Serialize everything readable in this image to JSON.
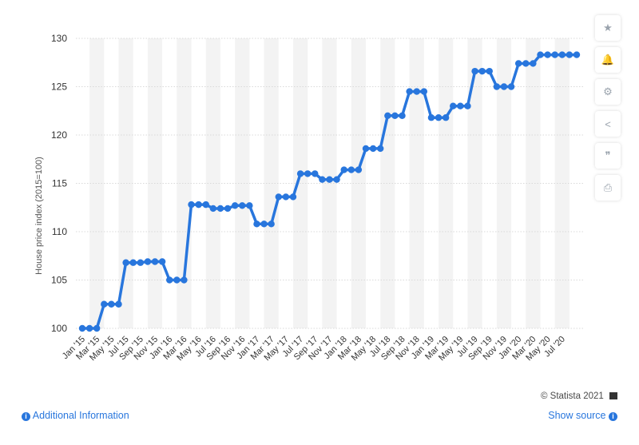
{
  "chart_data": {
    "type": "line",
    "ylabel": "House price index (2015=100)",
    "ylim": [
      100,
      130
    ],
    "yticks": [
      100,
      105,
      110,
      115,
      120,
      125,
      130
    ],
    "x": [
      "Jan '15",
      "Feb '15",
      "Mar '15",
      "Apr '15",
      "May '15",
      "Jun '15",
      "Jul '15",
      "Aug '15",
      "Sep '15",
      "Oct '15",
      "Nov '15",
      "Dec '15",
      "Jan '16",
      "Feb '16",
      "Mar '16",
      "Apr '16",
      "May '16",
      "Jun '16",
      "Jul '16",
      "Aug '16",
      "Sep '16",
      "Oct '16",
      "Nov '16",
      "Dec '16",
      "Jan '17",
      "Feb '17",
      "Mar '17",
      "Apr '17",
      "May '17",
      "Jun '17",
      "Jul '17",
      "Aug '17",
      "Sep '17",
      "Oct '17",
      "Nov '17",
      "Dec '17",
      "Jan '18",
      "Feb '18",
      "Mar '18",
      "Apr '18",
      "May '18",
      "Jun '18",
      "Jul '18",
      "Aug '18",
      "Sep '18",
      "Oct '18",
      "Nov '18",
      "Dec '18",
      "Jan '19",
      "Feb '19",
      "Mar '19",
      "Apr '19",
      "May '19",
      "Jun '19",
      "Jul '19",
      "Aug '19",
      "Sep '19",
      "Oct '19",
      "Nov '19",
      "Dec '19",
      "Jan '20",
      "Feb '20",
      "Mar '20",
      "Apr '20",
      "May '20",
      "Jun '20",
      "Jul '20",
      "Aug '20",
      "Sep '20"
    ],
    "x_tick_labels": [
      "Jan '15",
      "Mar '15",
      "May '15",
      "Jul '15",
      "Sep '15",
      "Nov '15",
      "Jan '16",
      "Mar '16",
      "May '16",
      "Jul '16",
      "Sep '16",
      "Nov '16",
      "Jan '17",
      "Mar '17",
      "May '17",
      "Jul '17",
      "Sep '17",
      "Nov '17",
      "Jan '18",
      "Mar '18",
      "May '18",
      "Jul '18",
      "Sep '18",
      "Nov '18",
      "Jan '19",
      "Mar '19",
      "May '19",
      "Jul '19",
      "Sep '19",
      "Nov '19",
      "Jan '20",
      "Mar '20",
      "May '20",
      "Jul '20"
    ],
    "series": [
      {
        "color": "#2876dd",
        "values": [
          100,
          100,
          100,
          102.5,
          102.5,
          102.5,
          106.8,
          106.8,
          106.8,
          106.9,
          106.9,
          106.9,
          105,
          105,
          105,
          112.8,
          112.8,
          112.8,
          112.4,
          112.4,
          112.4,
          112.7,
          112.7,
          112.7,
          110.8,
          110.8,
          110.8,
          113.6,
          113.6,
          113.6,
          116,
          116,
          116,
          115.4,
          115.4,
          115.4,
          116.4,
          116.4,
          116.4,
          118.6,
          118.6,
          118.6,
          122,
          122,
          122,
          124.5,
          124.5,
          124.5,
          121.8,
          121.8,
          121.8,
          123,
          123,
          123,
          126.6,
          126.6,
          126.6,
          125,
          125,
          125,
          127.4,
          127.4,
          127.4,
          128.3,
          128.3,
          128.3,
          128.3,
          128.3,
          128.3
        ]
      }
    ],
    "grid": true,
    "band_color": "#f3f3f3",
    "grid_color": "#d9d9d9"
  },
  "toolbar": {
    "icons": [
      "star-icon",
      "bell-icon",
      "gear-icon",
      "share-icon",
      "quote-icon",
      "print-icon"
    ],
    "glyphs": [
      "★",
      "🔔",
      "⚙",
      "<",
      "❞",
      "⎙"
    ]
  },
  "footer": {
    "additional_info": "Additional Information",
    "show_source": "Show source",
    "credit": "© Statista 2021"
  }
}
